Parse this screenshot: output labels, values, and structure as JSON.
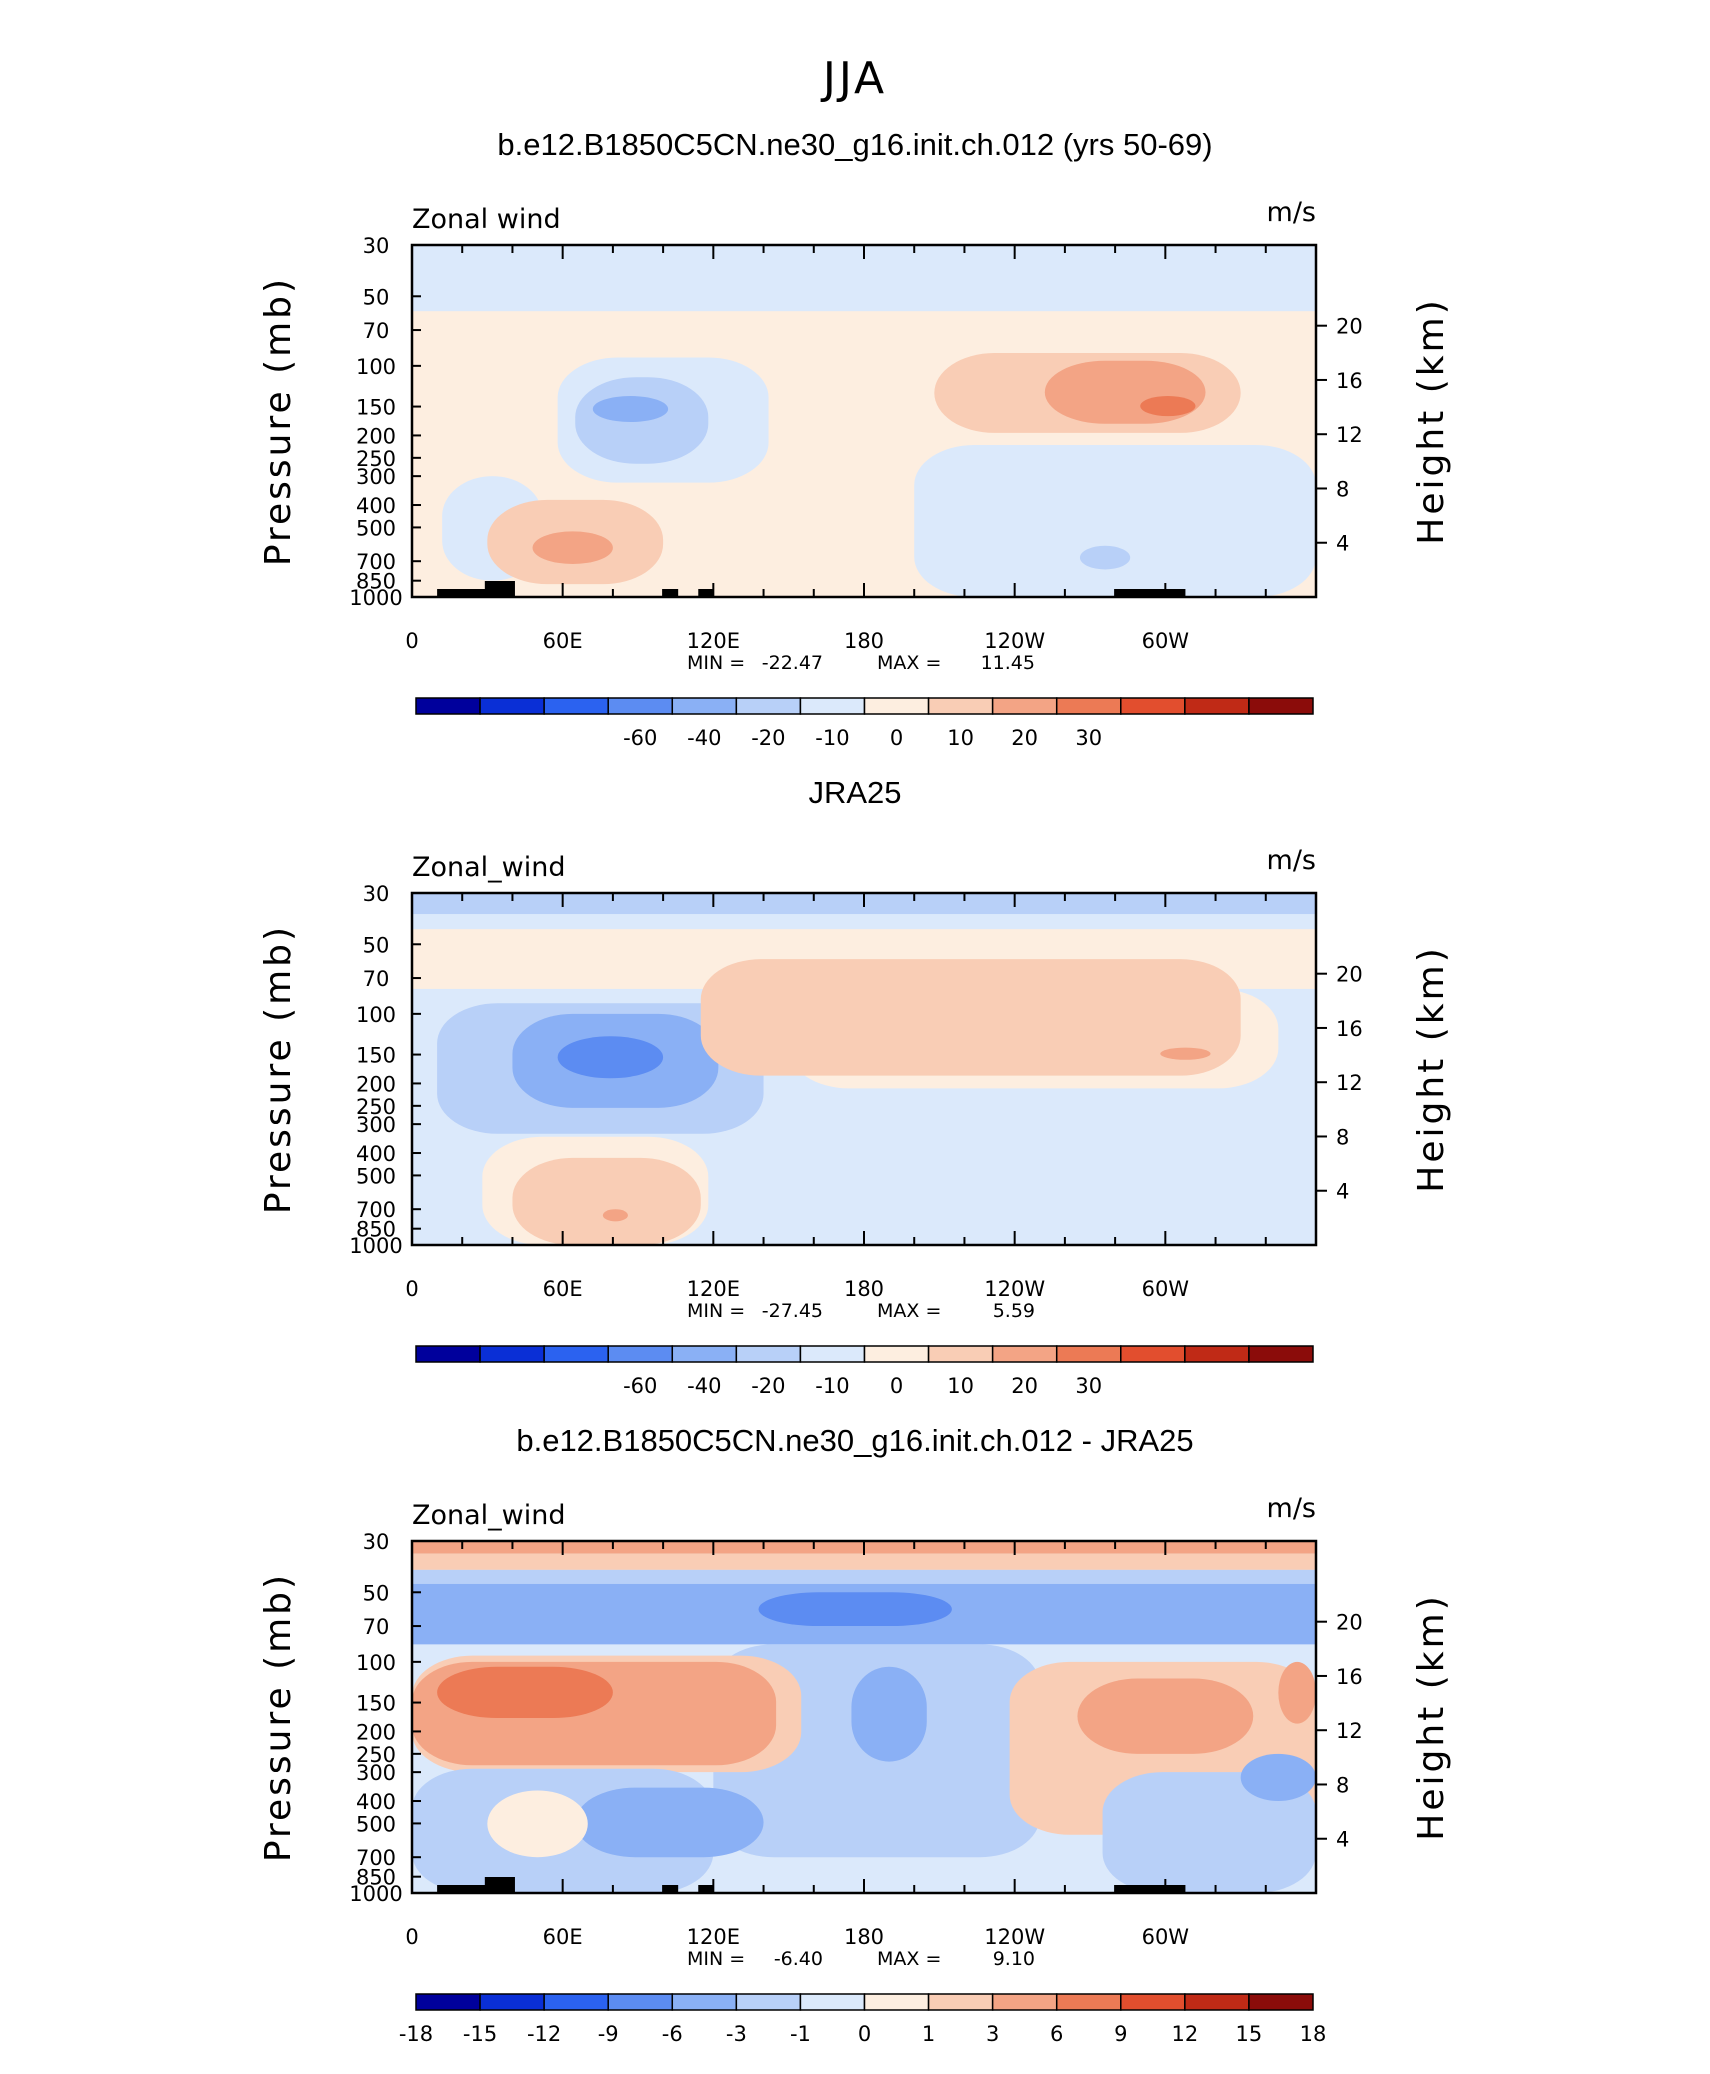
{
  "main_title": "JJA",
  "chart_data": [
    {
      "type": "heatmap",
      "title": "b.e12.B1850C5CN.ne30_g16.init.ch.012 (yrs 50-69)",
      "left_label": "Zonal wind",
      "units": "m/s",
      "ylabel": "Pressure  (mb)",
      "ylabel_right": "Height  (km)",
      "pressure_ticks": [
        "30",
        "50",
        "70",
        "100",
        "150",
        "200",
        "250",
        "300",
        "400",
        "500",
        "700",
        "850",
        "1000"
      ],
      "height_ticks": [
        "20",
        "16",
        "12",
        "8",
        "4"
      ],
      "lon_ticks": [
        "0",
        "60E",
        "120E",
        "180",
        "120W",
        "60W"
      ],
      "stats": {
        "min_label": "MIN =",
        "min": "-22.47",
        "max_label": "MAX =",
        "max": "11.45"
      },
      "colorbar_labels": [
        "-60",
        "-40",
        "-20",
        "-10",
        "0",
        "10",
        "20",
        "30"
      ],
      "colorbar_colors": [
        "#00009c",
        "#0a2fd6",
        "#2b62f0",
        "#5c8cf2",
        "#8ab0f5",
        "#b8d0f8",
        "#dbe9fb",
        "#fdeee0",
        "#f9cdb5",
        "#f3a485",
        "#ec7a55",
        "#e24e2e",
        "#c02a16",
        "#8b0c0a"
      ],
      "regions": [
        {
          "bin": 6,
          "lon": [
            0,
            360
          ],
          "p": [
            30,
            1000
          ]
        },
        {
          "bin": 7,
          "lon": [
            0,
            360
          ],
          "p": [
            58,
            1000
          ]
        },
        {
          "bin": 6,
          "lon": [
            58,
            142
          ],
          "p": [
            92,
            320
          ]
        },
        {
          "bin": 5,
          "lon": [
            65,
            118
          ],
          "p": [
            112,
            265
          ]
        },
        {
          "bin": 4,
          "lon": [
            72,
            102
          ],
          "p": [
            135,
            175
          ]
        },
        {
          "bin": 6,
          "lon": [
            200,
            360
          ],
          "p": [
            220,
            1000
          ]
        },
        {
          "bin": 6,
          "lon": [
            12,
            52
          ],
          "p": [
            300,
            850
          ]
        },
        {
          "bin": 8,
          "lon": [
            208,
            330
          ],
          "p": [
            88,
            195
          ]
        },
        {
          "bin": 8,
          "lon": [
            30,
            100
          ],
          "p": [
            380,
            880
          ]
        },
        {
          "bin": 9,
          "lon": [
            252,
            316
          ],
          "p": [
            95,
            178
          ]
        },
        {
          "bin": 9,
          "lon": [
            48,
            80
          ],
          "p": [
            520,
            720
          ]
        },
        {
          "bin": 10,
          "lon": [
            290,
            312
          ],
          "p": [
            135,
            165
          ]
        },
        {
          "bin": 5,
          "lon": [
            266,
            286
          ],
          "p": [
            600,
            760
          ]
        }
      ],
      "topography": [
        [
          10,
          32
        ],
        [
          29,
          41
        ],
        [
          100,
          106
        ],
        [
          114,
          120
        ],
        [
          280,
          308
        ]
      ]
    },
    {
      "type": "heatmap",
      "title": "JRA25",
      "left_label": "Zonal_wind",
      "units": "m/s",
      "ylabel": "Pressure  (mb)",
      "ylabel_right": "Height  (km)",
      "pressure_ticks": [
        "30",
        "50",
        "70",
        "100",
        "150",
        "200",
        "250",
        "300",
        "400",
        "500",
        "700",
        "850",
        "1000"
      ],
      "height_ticks": [
        "20",
        "16",
        "12",
        "8",
        "4"
      ],
      "lon_ticks": [
        "0",
        "60E",
        "120E",
        "180",
        "120W",
        "60W"
      ],
      "stats": {
        "min_label": "MIN =",
        "min": "-27.45",
        "max_label": "MAX =",
        "max": "5.59"
      },
      "colorbar_labels": [
        "-60",
        "-40",
        "-20",
        "-10",
        "0",
        "10",
        "20",
        "30"
      ],
      "colorbar_colors": [
        "#00009c",
        "#0a2fd6",
        "#2b62f0",
        "#5c8cf2",
        "#8ab0f5",
        "#b8d0f8",
        "#dbe9fb",
        "#fdeee0",
        "#f9cdb5",
        "#f3a485",
        "#ec7a55",
        "#e24e2e",
        "#c02a16",
        "#8b0c0a"
      ],
      "regions": [
        {
          "bin": 6,
          "lon": [
            0,
            360
          ],
          "p": [
            30,
            1000
          ]
        },
        {
          "bin": 7,
          "lon": [
            0,
            360
          ],
          "p": [
            43,
            78
          ]
        },
        {
          "bin": 7,
          "lon": [
            150,
            345
          ],
          "p": [
            78,
            210
          ]
        },
        {
          "bin": 7,
          "lon": [
            28,
            118
          ],
          "p": [
            340,
            1000
          ]
        },
        {
          "bin": 5,
          "lon": [
            0,
            360
          ],
          "p": [
            30,
            37
          ]
        },
        {
          "bin": 5,
          "lon": [
            10,
            140
          ],
          "p": [
            90,
            330
          ]
        },
        {
          "bin": 4,
          "lon": [
            40,
            122
          ],
          "p": [
            100,
            255
          ]
        },
        {
          "bin": 3,
          "lon": [
            58,
            100
          ],
          "p": [
            125,
            190
          ]
        },
        {
          "bin": 8,
          "lon": [
            115,
            330
          ],
          "p": [
            58,
            185
          ]
        },
        {
          "bin": 8,
          "lon": [
            40,
            115
          ],
          "p": [
            420,
            1000
          ]
        },
        {
          "bin": 9,
          "lon": [
            298,
            318
          ],
          "p": [
            140,
            158
          ]
        },
        {
          "bin": 9,
          "lon": [
            76,
            86
          ],
          "p": [
            700,
            790
          ]
        }
      ],
      "topography": []
    },
    {
      "type": "heatmap",
      "title": "b.e12.B1850C5CN.ne30_g16.init.ch.012 - JRA25",
      "left_label": "Zonal_wind",
      "units": "m/s",
      "ylabel": "Pressure  (mb)",
      "ylabel_right": "Height  (km)",
      "pressure_ticks": [
        "30",
        "50",
        "70",
        "100",
        "150",
        "200",
        "250",
        "300",
        "400",
        "500",
        "700",
        "850",
        "1000"
      ],
      "height_ticks": [
        "20",
        "16",
        "12",
        "8",
        "4"
      ],
      "lon_ticks": [
        "0",
        "60E",
        "120E",
        "180",
        "120W",
        "60W"
      ],
      "stats": {
        "min_label": "MIN =",
        "min": "-6.40",
        "max_label": "MAX =",
        "max": "9.10"
      },
      "colorbar_labels": [
        "-18",
        "-15",
        "-12",
        "-9",
        "-6",
        "-3",
        "-1",
        "0",
        "1",
        "3",
        "6",
        "9",
        "12",
        "15",
        "18"
      ],
      "colorbar_colors": [
        "#00009c",
        "#0a2fd6",
        "#2b62f0",
        "#5c8cf2",
        "#8ab0f5",
        "#b8d0f8",
        "#dbe9fb",
        "#fdeee0",
        "#f9cdb5",
        "#f3a485",
        "#ec7a55",
        "#e24e2e",
        "#c02a16",
        "#8b0c0a"
      ],
      "regions": [
        {
          "bin": 6,
          "lon": [
            0,
            360
          ],
          "p": [
            30,
            1000
          ]
        },
        {
          "bin": 9,
          "lon": [
            0,
            360
          ],
          "p": [
            30,
            34
          ]
        },
        {
          "bin": 8,
          "lon": [
            0,
            360
          ],
          "p": [
            34,
            40
          ]
        },
        {
          "bin": 5,
          "lon": [
            0,
            360
          ],
          "p": [
            40,
            46
          ]
        },
        {
          "bin": 4,
          "lon": [
            0,
            360
          ],
          "p": [
            46,
            84
          ]
        },
        {
          "bin": 3,
          "lon": [
            138,
            215
          ],
          "p": [
            50,
            70
          ]
        },
        {
          "bin": 5,
          "lon": [
            120,
            250
          ],
          "p": [
            84,
            700
          ]
        },
        {
          "bin": 4,
          "lon": [
            175,
            205
          ],
          "p": [
            105,
            270
          ]
        },
        {
          "bin": 8,
          "lon": [
            0,
            155
          ],
          "p": [
            94,
            300
          ]
        },
        {
          "bin": 9,
          "lon": [
            0,
            145
          ],
          "p": [
            100,
            280
          ]
        },
        {
          "bin": 10,
          "lon": [
            10,
            80
          ],
          "p": [
            105,
            175
          ]
        },
        {
          "bin": 8,
          "lon": [
            238,
            360
          ],
          "p": [
            100,
            560
          ]
        },
        {
          "bin": 9,
          "lon": [
            265,
            335
          ],
          "p": [
            118,
            250
          ]
        },
        {
          "bin": 9,
          "lon": [
            345,
            360
          ],
          "p": [
            100,
            185
          ]
        },
        {
          "bin": 5,
          "lon": [
            0,
            120
          ],
          "p": [
            290,
            1000
          ]
        },
        {
          "bin": 4,
          "lon": [
            65,
            140
          ],
          "p": [
            350,
            700
          ]
        },
        {
          "bin": 7,
          "lon": [
            30,
            70
          ],
          "p": [
            360,
            700
          ]
        },
        {
          "bin": 5,
          "lon": [
            275,
            360
          ],
          "p": [
            300,
            1000
          ]
        },
        {
          "bin": 4,
          "lon": [
            330,
            360
          ],
          "p": [
            250,
            400
          ]
        }
      ],
      "topography": [
        [
          10,
          32
        ],
        [
          29,
          41
        ],
        [
          100,
          106
        ],
        [
          114,
          120
        ],
        [
          280,
          308
        ]
      ]
    }
  ]
}
